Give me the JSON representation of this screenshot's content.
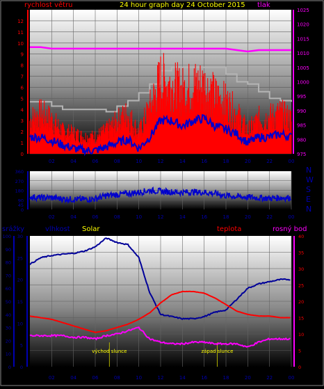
{
  "colors": {
    "red": "#ff0000",
    "magenta": "#ff00ff",
    "yellow": "#ffff00",
    "blue": "#0000cc",
    "navy": "#000099",
    "grey": "#b4b4b4",
    "axis_blue": "#0000b0"
  },
  "chart_data": [
    {
      "id": "wind-pressure",
      "type": "line",
      "title": "24 hour graph day   24 October 2015",
      "left_label": "rychlost větru",
      "right_label": "tlak",
      "x_ticks": [
        "02",
        "04",
        "06",
        "08",
        "10",
        "12",
        "14",
        "16",
        "18",
        "20",
        "22",
        "00"
      ],
      "left_ticks": [
        "0",
        "1",
        "2",
        "3",
        "4",
        "5",
        "6",
        "7",
        "8",
        "9",
        "10",
        "11",
        "12"
      ],
      "right_ticks": [
        "975",
        "980",
        "985",
        "990",
        "995",
        "1000",
        "1005",
        "1010",
        "1015",
        "1020",
        "1025"
      ],
      "left_ylim": [
        0,
        13
      ],
      "right_ylim": [
        975,
        1025
      ],
      "x": [
        0,
        1,
        2,
        3,
        4,
        5,
        6,
        7,
        8,
        9,
        10,
        11,
        12,
        13,
        14,
        15,
        16,
        17,
        18,
        19,
        20,
        21,
        22,
        23,
        24
      ],
      "series": [
        {
          "role": "pressure",
          "color": "#ff00ff",
          "axis": "right",
          "values": [
            1012,
            1012,
            1011.5,
            1011.5,
            1011.5,
            1011.5,
            1011.5,
            1011.5,
            1011.5,
            1011.5,
            1011.5,
            1011.5,
            1011.5,
            1011.5,
            1011.5,
            1011.5,
            1011.5,
            1011.5,
            1011.5,
            1011,
            1010.5,
            1011,
            1011,
            1011,
            1011
          ]
        },
        {
          "role": "gust",
          "color": "#ff0000",
          "axis": "left",
          "values": [
            3,
            3.5,
            3,
            2,
            1.8,
            1.5,
            1.5,
            2,
            2.8,
            3.5,
            1.8,
            4,
            6.5,
            6,
            5.5,
            6,
            6,
            5,
            4.5,
            3.5,
            2,
            3,
            3.2,
            3.5,
            3
          ]
        },
        {
          "role": "wind-average",
          "color": "#0000cc",
          "axis": "left",
          "values": [
            1.5,
            1.5,
            1.2,
            0.8,
            0.5,
            0.3,
            0.3,
            0.6,
            1,
            1.3,
            0.5,
            1.5,
            3,
            3,
            2.5,
            3,
            3.2,
            2.5,
            2.2,
            1.8,
            1,
            1.5,
            1.5,
            1.8,
            1.5
          ]
        },
        {
          "role": "max-wind-envelope",
          "color": "#b4b4b4",
          "axis": "left",
          "values": [
            4.7,
            4.7,
            4.3,
            4,
            4,
            4,
            4,
            3.8,
            4.3,
            4.8,
            5.5,
            6.3,
            7.5,
            7.8,
            7.8,
            7.8,
            7.8,
            7.8,
            7.2,
            6.5,
            6.3,
            5.6,
            5,
            4.8,
            4.7
          ]
        }
      ]
    },
    {
      "id": "wind-direction",
      "type": "line",
      "x_ticks": [
        "02",
        "04",
        "06",
        "08",
        "10",
        "12",
        "14",
        "16",
        "18",
        "20",
        "22",
        "00"
      ],
      "y_ticks": [
        "0",
        "45",
        "90",
        "135",
        "180",
        "225",
        "270",
        "315",
        "360"
      ],
      "compass_labels": [
        "N",
        "W",
        "S",
        "E",
        "N"
      ],
      "ylim": [
        0,
        360
      ],
      "x": [
        0,
        1,
        2,
        3,
        4,
        5,
        6,
        7,
        8,
        9,
        10,
        11,
        12,
        13,
        14,
        15,
        16,
        17,
        18,
        19,
        20,
        21,
        22,
        23,
        24
      ],
      "series": [
        {
          "role": "direction",
          "color": "#0000cc",
          "values": [
            120,
            110,
            110,
            100,
            95,
            95,
            100,
            130,
            140,
            150,
            160,
            180,
            170,
            165,
            160,
            165,
            160,
            150,
            130,
            120,
            115,
            110,
            105,
            110,
            110
          ]
        }
      ]
    },
    {
      "id": "humidity-temperature",
      "type": "line",
      "labels": {
        "rain": "srážky",
        "humidity": "vlhkost",
        "solar": "Solar",
        "temperature": "teplota",
        "dewpoint": "rosný bod"
      },
      "annotations": {
        "sunrise": "východ slunce",
        "sunset": "západ slunce"
      },
      "sunrise_hour": 7.3,
      "sunset_hour": 17.2,
      "x_ticks": [
        "02",
        "04",
        "06",
        "08",
        "10",
        "12",
        "14",
        "16",
        "18",
        "20",
        "22",
        "00"
      ],
      "rain_ticks": [
        "0",
        "10",
        "20",
        "30",
        "40",
        "50",
        "60",
        "70",
        "80",
        "90",
        "100"
      ],
      "humidity_ticks": [
        "0",
        "5",
        "10",
        "15",
        "20",
        "25",
        "30"
      ],
      "temp_ticks": [
        "0",
        "5",
        "10",
        "15",
        "20",
        "25",
        "30",
        "35",
        "40"
      ],
      "rain_ylim": [
        0,
        100
      ],
      "humidity_ylim": [
        0,
        30
      ],
      "temp_ylim": [
        0,
        40
      ],
      "x": [
        0,
        1,
        2,
        3,
        4,
        5,
        6,
        7,
        8,
        9,
        10,
        11,
        12,
        13,
        14,
        15,
        16,
        17,
        18,
        19,
        20,
        21,
        22,
        23,
        24
      ],
      "series": [
        {
          "role": "humidity",
          "color": "#000099",
          "axis": "humidity",
          "values": [
            23.5,
            25,
            25.5,
            25.8,
            26,
            26.5,
            27.5,
            29.5,
            28.5,
            28,
            25,
            17,
            12,
            11.5,
            11,
            11,
            11.5,
            12.5,
            13,
            15.5,
            18,
            19,
            19.5,
            20,
            20
          ]
        },
        {
          "role": "temperature",
          "color": "#ff0000",
          "axis": "temp",
          "values": [
            15.5,
            15,
            14.5,
            13.5,
            12.5,
            11.5,
            10.5,
            11,
            12,
            13,
            14.5,
            16.5,
            19.5,
            22,
            23,
            23,
            22.5,
            21,
            19,
            17,
            16,
            15.5,
            15.5,
            15,
            15
          ]
        },
        {
          "role": "dewpoint",
          "color": "#ff00ff",
          "axis": "temp",
          "values": [
            9.5,
            9.5,
            9.5,
            9.5,
            9,
            9,
            8.5,
            9.5,
            10,
            11,
            12,
            8.5,
            7.5,
            7,
            7,
            7.5,
            7.5,
            7,
            7,
            7,
            6,
            7.5,
            8.5,
            8.5,
            8.5
          ]
        }
      ]
    }
  ]
}
